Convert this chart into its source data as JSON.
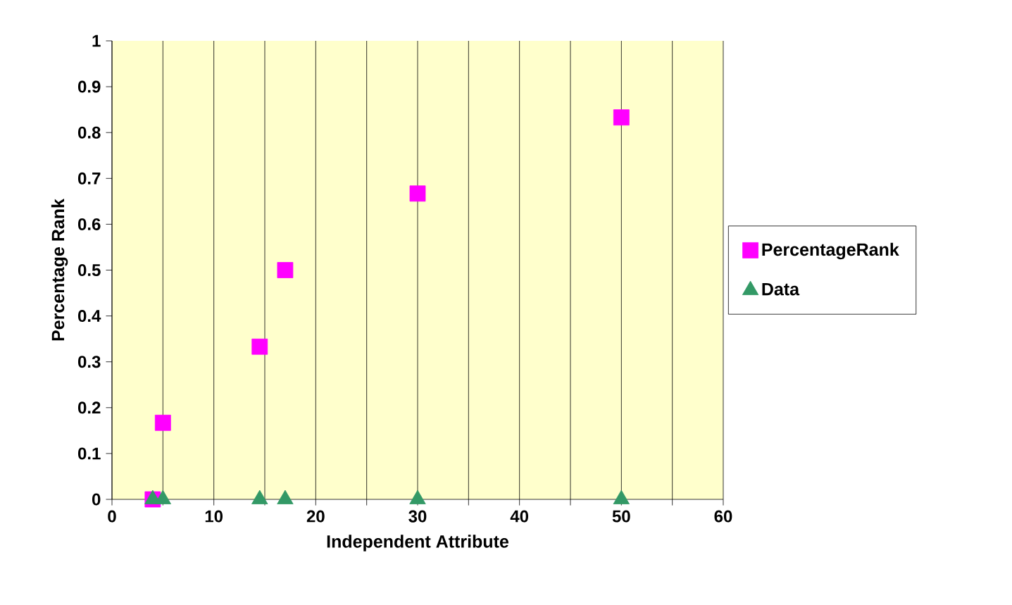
{
  "chart_data": {
    "type": "scatter",
    "xlabel": "Independent Attribute",
    "ylabel": "Percentage Rank",
    "xlim": [
      0,
      60
    ],
    "ylim": [
      0,
      1
    ],
    "xticks": [
      0,
      {
        "value": 5,
        "label": null
      },
      10,
      {
        "value": 15,
        "label": null
      },
      20,
      {
        "value": 25,
        "label": null
      },
      30,
      {
        "value": 35,
        "label": null
      },
      40,
      {
        "value": 45,
        "label": null
      },
      50,
      {
        "value": 55,
        "label": null
      },
      60
    ],
    "yticks": [
      0,
      0.1,
      0.2,
      0.3,
      0.4,
      0.5,
      0.6,
      0.7,
      0.8,
      0.9,
      1
    ],
    "grid": "x",
    "legend": "right",
    "series": [
      {
        "name": "PercentageRank",
        "color": "#ff00ff",
        "marker": "square",
        "x": [
          4,
          5,
          14.5,
          17,
          30,
          50
        ],
        "values": [
          0,
          0.167,
          0.333,
          0.5,
          0.667,
          0.833
        ]
      },
      {
        "name": "Data",
        "color": "#339966",
        "marker": "triangle",
        "x": [
          4,
          5,
          14.5,
          17,
          30,
          50
        ],
        "values": [
          0,
          0,
          0,
          0,
          0,
          0
        ]
      }
    ]
  }
}
